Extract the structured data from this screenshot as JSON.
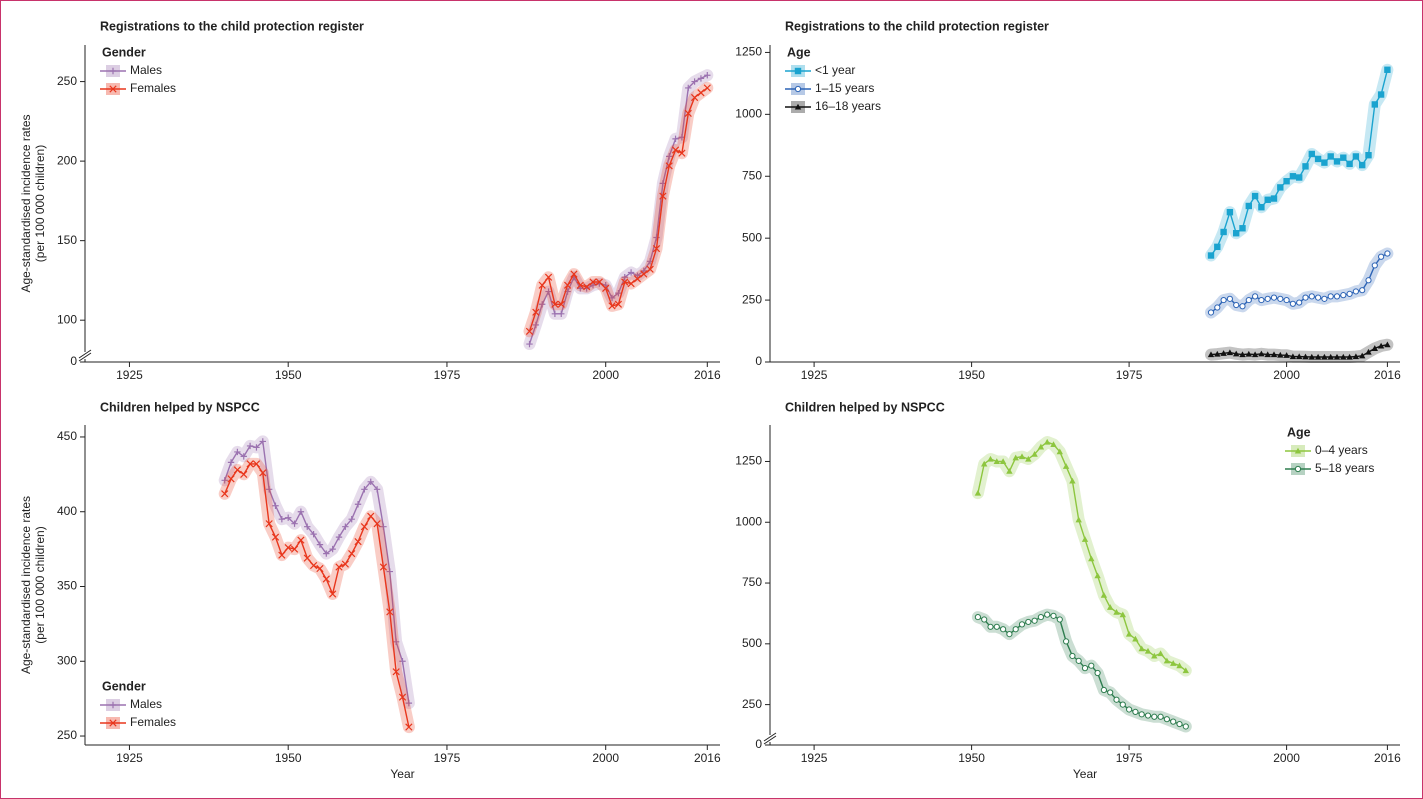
{
  "chart_data": [
    {
      "type": "line",
      "title": "Registrations to the child protection register",
      "ylabel": [
        "Age-standardised incidence rates",
        "(per 100 000 children)"
      ],
      "x": [
        1988,
        1989,
        1990,
        1991,
        1992,
        1993,
        1994,
        1995,
        1996,
        1997,
        1998,
        1999,
        2000,
        2001,
        2002,
        2003,
        2004,
        2005,
        2006,
        2007,
        2008,
        2009,
        2010,
        2011,
        2012,
        2013,
        2014,
        2015,
        2016
      ],
      "xlim": [
        1918,
        2018
      ],
      "xticks": [
        1925,
        1950,
        1975,
        2000,
        2016
      ],
      "ylim": [
        0,
        273
      ],
      "y_break": [
        0,
        80
      ],
      "yticks": [
        0,
        100,
        150,
        200,
        250
      ],
      "legend": "upper left",
      "legend_title": "Gender",
      "series": [
        {
          "name": "Males",
          "color": "#9b72b0",
          "marker": "plus",
          "values": [
            85,
            97,
            110,
            118,
            104,
            104,
            118,
            127,
            120,
            120,
            122,
            123,
            122,
            114,
            117,
            127,
            130,
            128,
            131,
            137,
            152,
            186,
            203,
            214,
            215,
            246,
            250,
            252,
            254
          ]
        },
        {
          "name": "Females",
          "color": "#e8361c",
          "marker": "x",
          "values": [
            93,
            105,
            122,
            127,
            110,
            110,
            122,
            129,
            122,
            121,
            124,
            124,
            120,
            109,
            110,
            124,
            123,
            126,
            129,
            132,
            145,
            178,
            197,
            207,
            205,
            230,
            240,
            243,
            246
          ]
        }
      ]
    },
    {
      "type": "line",
      "title": "Registrations to the child protection register",
      "x": [
        1988,
        1989,
        1990,
        1991,
        1992,
        1993,
        1994,
        1995,
        1996,
        1997,
        1998,
        1999,
        2000,
        2001,
        2002,
        2003,
        2004,
        2005,
        2006,
        2007,
        2008,
        2009,
        2010,
        2011,
        2012,
        2013,
        2014,
        2015,
        2016
      ],
      "xlim": [
        1918,
        2018
      ],
      "xticks": [
        1925,
        1950,
        1975,
        2000,
        2016
      ],
      "ylim": [
        0,
        1280
      ],
      "yticks": [
        0,
        250,
        500,
        750,
        1000,
        1250
      ],
      "legend": "upper left",
      "legend_title": "Age",
      "series": [
        {
          "name": "<1 year",
          "color": "#1aa3cf",
          "marker": "square",
          "values": [
            430,
            465,
            525,
            605,
            520,
            540,
            630,
            670,
            625,
            655,
            660,
            705,
            730,
            750,
            745,
            790,
            840,
            820,
            805,
            830,
            810,
            825,
            800,
            830,
            795,
            835,
            1040,
            1080,
            1180
          ]
        },
        {
          "name": "1–15 years",
          "color": "#2d64b6",
          "marker": "circle",
          "values": [
            200,
            220,
            250,
            255,
            230,
            225,
            250,
            265,
            250,
            255,
            260,
            255,
            250,
            235,
            240,
            260,
            265,
            260,
            255,
            265,
            265,
            270,
            275,
            285,
            290,
            330,
            390,
            425,
            438
          ]
        },
        {
          "name": "16–18 years",
          "color": "#111111",
          "marker": "triangle",
          "values": [
            30,
            32,
            35,
            38,
            33,
            30,
            32,
            30,
            33,
            30,
            30,
            28,
            27,
            22,
            22,
            21,
            20,
            20,
            20,
            20,
            20,
            20,
            20,
            22,
            25,
            40,
            55,
            65,
            70
          ]
        }
      ]
    },
    {
      "type": "line",
      "title": "Children helped by NSPCC",
      "ylabel": [
        "Age-standardised incidence rates",
        "(per 100 000 children)"
      ],
      "xlabel": "Year",
      "x": [
        1940,
        1941,
        1942,
        1943,
        1944,
        1945,
        1946,
        1947,
        1948,
        1949,
        1950,
        1951,
        1952,
        1953,
        1954,
        1955,
        1956,
        1957,
        1958,
        1959,
        1960,
        1961,
        1962,
        1963,
        1964,
        1965,
        1966,
        1967,
        1968,
        1969
      ],
      "xlim": [
        1918,
        2018
      ],
      "xticks": [
        1925,
        1950,
        1975,
        2000,
        2016
      ],
      "ylim": [
        244,
        458
      ],
      "yticks": [
        250,
        300,
        350,
        400,
        450
      ],
      "legend": "lower left",
      "legend_title": "Gender",
      "series": [
        {
          "name": "Males",
          "color": "#9b72b0",
          "marker": "plus",
          "values": [
            421,
            433,
            440,
            437,
            444,
            443,
            447,
            415,
            404,
            395,
            396,
            392,
            400,
            390,
            385,
            378,
            372,
            375,
            383,
            390,
            395,
            405,
            415,
            420,
            415,
            390,
            360,
            313,
            300,
            272
          ]
        },
        {
          "name": "Females",
          "color": "#e8361c",
          "marker": "x",
          "values": [
            412,
            422,
            428,
            425,
            432,
            432,
            426,
            392,
            383,
            371,
            376,
            375,
            381,
            369,
            364,
            362,
            355,
            345,
            363,
            365,
            372,
            380,
            390,
            397,
            392,
            363,
            333,
            293,
            276,
            256
          ]
        }
      ]
    },
    {
      "type": "line",
      "title": "Children helped by NSPCC",
      "xlabel": "Year",
      "x": [
        1951,
        1952,
        1953,
        1954,
        1955,
        1956,
        1957,
        1958,
        1959,
        1960,
        1961,
        1962,
        1963,
        1964,
        1965,
        1966,
        1967,
        1968,
        1969,
        1970,
        1971,
        1972,
        1973,
        1974,
        1975,
        1976,
        1977,
        1978,
        1979,
        1980,
        1981,
        1982,
        1983,
        1984
      ],
      "xlim": [
        1918,
        2018
      ],
      "xticks": [
        1925,
        1950,
        1975,
        2000,
        2016
      ],
      "ylim": [
        0,
        1400
      ],
      "y_break": [
        0,
        125
      ],
      "yticks": [
        0,
        250,
        500,
        750,
        1000,
        1250
      ],
      "legend": "upper right",
      "legend_title": "Age",
      "series": [
        {
          "name": "0–4 years",
          "color": "#8dc63f",
          "marker": "triangle",
          "values": [
            1120,
            1240,
            1260,
            1250,
            1250,
            1210,
            1265,
            1270,
            1260,
            1280,
            1310,
            1330,
            1320,
            1290,
            1230,
            1170,
            1010,
            930,
            850,
            780,
            700,
            650,
            630,
            620,
            540,
            520,
            480,
            470,
            450,
            460,
            430,
            420,
            410,
            390
          ]
        },
        {
          "name": "5–18 years",
          "color": "#2e7d4f",
          "marker": "circle",
          "values": [
            610,
            600,
            570,
            570,
            560,
            540,
            560,
            580,
            590,
            595,
            610,
            620,
            615,
            600,
            510,
            450,
            430,
            400,
            410,
            380,
            310,
            300,
            270,
            250,
            230,
            220,
            210,
            205,
            200,
            200,
            190,
            180,
            170,
            160
          ]
        }
      ]
    }
  ]
}
